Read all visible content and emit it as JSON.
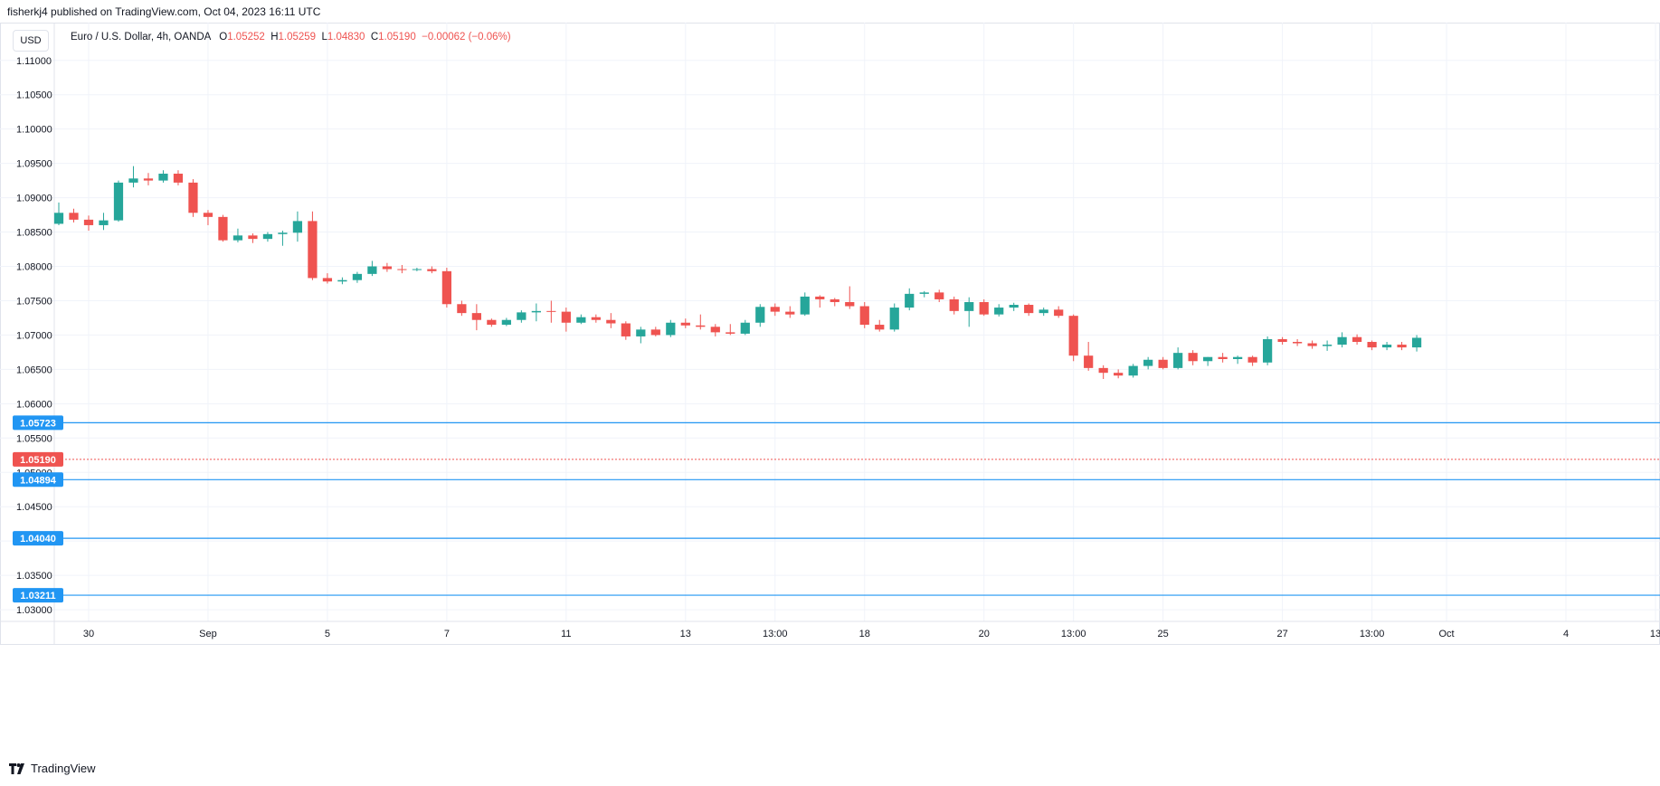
{
  "header": {
    "published": "fisherkj4 published on TradingView.com, Oct 04, 2023 16:11 UTC"
  },
  "currency_button": "USD",
  "legend": {
    "symbol": "Euro / U.S. Dollar, 4h, OANDA",
    "open_label": "O",
    "open": "1.05252",
    "high_label": "H",
    "high": "1.05259",
    "low_label": "L",
    "low": "1.04830",
    "close_label": "C",
    "close": "1.05190",
    "change": "−0.00062 (−0.06%)"
  },
  "footer": {
    "brand": "TradingView"
  },
  "colors": {
    "up": "#26a69a",
    "down": "#ef5350",
    "level": "#2196f3",
    "grid": "#f0f3fa",
    "axis_text": "#131722"
  },
  "chart_data": {
    "type": "candlestick",
    "y_ticks": [
      "1.11000",
      "1.10500",
      "1.10000",
      "1.09500",
      "1.09000",
      "1.08500",
      "1.08000",
      "1.07500",
      "1.07000",
      "1.06500",
      "1.06000",
      "1.05500",
      "1.05000",
      "1.04500",
      "1.04000",
      "1.03500",
      "1.03000"
    ],
    "y_tick_values": [
      1.11,
      1.105,
      1.1,
      1.095,
      1.09,
      1.085,
      1.08,
      1.075,
      1.07,
      1.065,
      1.06,
      1.055,
      1.05,
      1.045,
      1.04,
      1.035,
      1.03
    ],
    "ylim": [
      1.0283,
      1.1155
    ],
    "x_ticks": [
      {
        "label": "30",
        "bar": 2
      },
      {
        "label": "Sep",
        "bar": 10
      },
      {
        "label": "5",
        "bar": 18
      },
      {
        "label": "7",
        "bar": 26
      },
      {
        "label": "11",
        "bar": 34
      },
      {
        "label": "13",
        "bar": 42
      },
      {
        "label": "13:00",
        "bar": 48
      },
      {
        "label": "18",
        "bar": 54
      },
      {
        "label": "20",
        "bar": 62
      },
      {
        "label": "13:00",
        "bar": 68
      },
      {
        "label": "25",
        "bar": 74
      },
      {
        "label": "27",
        "bar": 82
      },
      {
        "label": "13:00",
        "bar": 88
      },
      {
        "label": "Oct",
        "bar": 93
      },
      {
        "label": "4",
        "bar": 101
      },
      {
        "label": "13",
        "bar": 107
      }
    ],
    "bar_count_span": 107,
    "horizontal_levels": [
      {
        "label": "1.05723",
        "value": 1.05723,
        "color": "#2196f3"
      },
      {
        "label": "1.04894",
        "value": 1.04894,
        "color": "#2196f3"
      },
      {
        "label": "1.04040",
        "value": 1.0404,
        "color": "#2196f3"
      },
      {
        "label": "1.03211",
        "value": 1.03211,
        "color": "#2196f3"
      }
    ],
    "last_price": {
      "label": "1.05190",
      "value": 1.0519,
      "color": "#ef5350"
    },
    "candles": [
      [
        1.0862,
        1.0893,
        1.086,
        1.0878
      ],
      [
        1.0878,
        1.0884,
        1.0864,
        1.0868
      ],
      [
        1.0868,
        1.0874,
        1.0852,
        1.086
      ],
      [
        1.086,
        1.0878,
        1.0853,
        1.0867
      ],
      [
        1.0867,
        1.0925,
        1.0865,
        1.0922
      ],
      [
        1.0922,
        1.0946,
        1.0915,
        1.0928
      ],
      [
        1.0928,
        1.0936,
        1.0918,
        1.0925
      ],
      [
        1.0925,
        1.094,
        1.0922,
        1.0935
      ],
      [
        1.0935,
        1.094,
        1.0918,
        1.0922
      ],
      [
        1.0922,
        1.0927,
        1.0872,
        1.0878
      ],
      [
        1.0878,
        1.0882,
        1.086,
        1.0872
      ],
      [
        1.0872,
        1.0875,
        1.0836,
        1.0838
      ],
      [
        1.0838,
        1.0855,
        1.0835,
        1.0845
      ],
      [
        1.0845,
        1.0848,
        1.0834,
        1.084
      ],
      [
        1.084,
        1.085,
        1.0836,
        1.0847
      ],
      [
        1.0847,
        1.0852,
        1.083,
        1.0849
      ],
      [
        1.0849,
        1.088,
        1.0836,
        1.0866
      ],
      [
        1.0866,
        1.088,
        1.078,
        1.0783
      ],
      [
        1.0783,
        1.079,
        1.0775,
        1.0778
      ],
      [
        1.0778,
        1.0784,
        1.0774,
        1.078
      ],
      [
        1.078,
        1.0792,
        1.0776,
        1.0789
      ],
      [
        1.0789,
        1.0808,
        1.0786,
        1.08
      ],
      [
        1.08,
        1.0805,
        1.0792,
        1.0796
      ],
      [
        1.0796,
        1.0802,
        1.079,
        1.0795
      ],
      [
        1.0795,
        1.0798,
        1.0793,
        1.0796
      ],
      [
        1.0796,
        1.08,
        1.079,
        1.0793
      ],
      [
        1.0793,
        1.0798,
        1.074,
        1.0745
      ],
      [
        1.0745,
        1.075,
        1.0728,
        1.0732
      ],
      [
        1.0732,
        1.0745,
        1.0707,
        1.0722
      ],
      [
        1.0722,
        1.0724,
        1.0712,
        1.0715
      ],
      [
        1.0715,
        1.0725,
        1.0713,
        1.0722
      ],
      [
        1.0722,
        1.0736,
        1.0718,
        1.0733
      ],
      [
        1.0733,
        1.0746,
        1.072,
        1.0735
      ],
      [
        1.0735,
        1.075,
        1.0718,
        1.0734
      ],
      [
        1.0734,
        1.074,
        1.0705,
        1.0718
      ],
      [
        1.0718,
        1.073,
        1.0716,
        1.0726
      ],
      [
        1.0726,
        1.073,
        1.0718,
        1.0722
      ],
      [
        1.0722,
        1.0732,
        1.071,
        1.0717
      ],
      [
        1.0717,
        1.072,
        1.0693,
        1.0698
      ],
      [
        1.0698,
        1.0712,
        1.0688,
        1.0708
      ],
      [
        1.0708,
        1.0712,
        1.0698,
        1.07
      ],
      [
        1.07,
        1.0722,
        1.0697,
        1.0718
      ],
      [
        1.0718,
        1.0724,
        1.071,
        1.0714
      ],
      [
        1.0714,
        1.073,
        1.0708,
        1.0712
      ],
      [
        1.0712,
        1.0716,
        1.0698,
        1.0704
      ],
      [
        1.0704,
        1.0716,
        1.07,
        1.0702
      ],
      [
        1.0702,
        1.0722,
        1.07,
        1.0718
      ],
      [
        1.0718,
        1.0745,
        1.0712,
        1.0741
      ],
      [
        1.0741,
        1.0746,
        1.0728,
        1.0734
      ],
      [
        1.0734,
        1.0742,
        1.0725,
        1.073
      ],
      [
        1.073,
        1.0762,
        1.0728,
        1.0756
      ],
      [
        1.0756,
        1.0758,
        1.074,
        1.0752
      ],
      [
        1.0752,
        1.0754,
        1.0742,
        1.0748
      ],
      [
        1.0748,
        1.0771,
        1.0738,
        1.0742
      ],
      [
        1.0742,
        1.0748,
        1.071,
        1.0715
      ],
      [
        1.0715,
        1.0722,
        1.0705,
        1.0708
      ],
      [
        1.0708,
        1.0746,
        1.0705,
        1.074
      ],
      [
        1.074,
        1.0768,
        1.0736,
        1.076
      ],
      [
        1.076,
        1.0764,
        1.0755,
        1.0762
      ],
      [
        1.0762,
        1.0766,
        1.0748,
        1.0752
      ],
      [
        1.0752,
        1.0756,
        1.073,
        1.0735
      ],
      [
        1.0735,
        1.0755,
        1.0712,
        1.0748
      ],
      [
        1.0748,
        1.0752,
        1.0728,
        1.073
      ],
      [
        1.073,
        1.0745,
        1.0727,
        1.074
      ],
      [
        1.074,
        1.0747,
        1.0735,
        1.0744
      ],
      [
        1.0744,
        1.0746,
        1.0728,
        1.0732
      ],
      [
        1.0732,
        1.074,
        1.0728,
        1.0737
      ],
      [
        1.0737,
        1.0742,
        1.0725,
        1.0728
      ],
      [
        1.0728,
        1.073,
        1.0662,
        1.067
      ],
      [
        1.067,
        1.069,
        1.0648,
        1.0652
      ],
      [
        1.0652,
        1.0656,
        1.0636,
        1.0645
      ],
      [
        1.0645,
        1.065,
        1.0637,
        1.0641
      ],
      [
        1.0641,
        1.0658,
        1.0638,
        1.0655
      ],
      [
        1.0655,
        1.0668,
        1.065,
        1.0664
      ],
      [
        1.0664,
        1.0668,
        1.065,
        1.0652
      ],
      [
        1.0652,
        1.0682,
        1.065,
        1.0674
      ],
      [
        1.0674,
        1.0678,
        1.0656,
        1.0662
      ],
      [
        1.0662,
        1.0668,
        1.0655,
        1.0668
      ],
      [
        1.0668,
        1.0674,
        1.066,
        1.0665
      ],
      [
        1.0665,
        1.067,
        1.0658,
        1.0668
      ],
      [
        1.0668,
        1.067,
        1.0655,
        1.066
      ],
      [
        1.066,
        1.0698,
        1.0656,
        1.0694
      ],
      [
        1.0694,
        1.0697,
        1.0686,
        1.069
      ],
      [
        1.069,
        1.0694,
        1.0684,
        1.0688
      ],
      [
        1.0688,
        1.0692,
        1.068,
        1.0684
      ],
      [
        1.0684,
        1.0692,
        1.0677,
        1.0686
      ],
      [
        1.0686,
        1.0704,
        1.0682,
        1.0697
      ],
      [
        1.0697,
        1.0701,
        1.0686,
        1.069
      ],
      [
        1.069,
        1.0692,
        1.0678,
        1.0682
      ],
      [
        1.0682,
        1.069,
        1.0678,
        1.0686
      ],
      [
        1.0686,
        1.069,
        1.0678,
        1.0682
      ],
      [
        1.0682,
        1.07,
        1.0676,
        1.0696
      ]
    ]
  }
}
